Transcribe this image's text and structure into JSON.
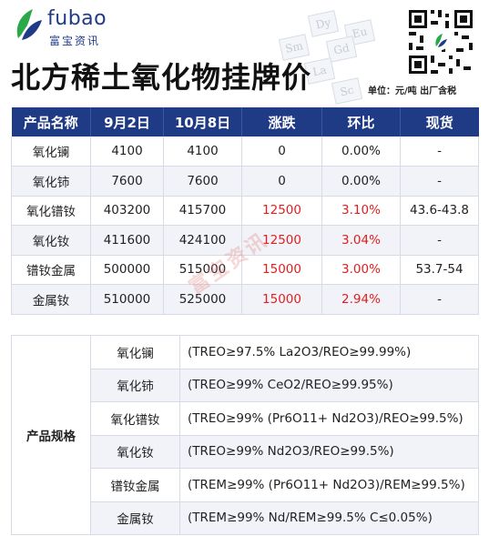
{
  "brand": {
    "name_en": "fubao",
    "name_cn": "富宝资讯",
    "primary_color": "#1f3b86",
    "accent_color": "#2aa84a"
  },
  "header": {
    "title": "北方稀土氧化物挂牌价",
    "unit_note": "单位：元/吨 出厂含税",
    "element_tiles": [
      "Dy",
      "Eu",
      "Gd",
      "Sm",
      "La",
      "Sc"
    ]
  },
  "price_table": {
    "columns": [
      "产品名称",
      "9月2日",
      "10月8日",
      "涨跌",
      "环比",
      "现货"
    ],
    "rows": [
      {
        "name": "氧化镧",
        "sep2": "4100",
        "oct8": "4100",
        "change": "0",
        "mom": "0.00%",
        "spot": "-",
        "up": false
      },
      {
        "name": "氧化铈",
        "sep2": "7600",
        "oct8": "7600",
        "change": "0",
        "mom": "0.00%",
        "spot": "-",
        "up": false
      },
      {
        "name": "氧化镨钕",
        "sep2": "403200",
        "oct8": "415700",
        "change": "12500",
        "mom": "3.10%",
        "spot": "43.6-43.8",
        "up": true
      },
      {
        "name": "氧化钕",
        "sep2": "411600",
        "oct8": "424100",
        "change": "12500",
        "mom": "3.04%",
        "spot": "-",
        "up": true
      },
      {
        "name": "镨钕金属",
        "sep2": "500000",
        "oct8": "515000",
        "change": "15000",
        "mom": "3.00%",
        "spot": "53.7-54",
        "up": true
      },
      {
        "name": "金属钕",
        "sep2": "510000",
        "oct8": "525000",
        "change": "15000",
        "mom": "2.94%",
        "spot": "-",
        "up": true
      }
    ]
  },
  "spec_table": {
    "heading": "产品规格",
    "rows": [
      {
        "name": "氧化镧",
        "spec": "(TREO≥97.5%   La2O3/REO≥99.99%)"
      },
      {
        "name": "氧化铈",
        "spec": "(TREO≥99%    CeO2/REO≥99.95%)"
      },
      {
        "name": "氧化镨钕",
        "spec": "(TREO≥99% (Pr6O11+ Nd2O3)/REO≥99.5%)"
      },
      {
        "name": "氧化钕",
        "spec": "(TREO≥99% Nd2O3/REO≥99.5%)"
      },
      {
        "name": "镨钕金属",
        "spec": "(TREM≥99% (Pr6O11+ Nd2O3)/REM≥99.5%)"
      },
      {
        "name": "金属钕",
        "spec": "(TREM≥99% Nd/REM≥99.5%   C≤0.05%)"
      }
    ]
  },
  "watermark": "富宝资讯",
  "icons": {
    "logo": "fubao-leaf-logo-icon",
    "qr": "qr-code-icon"
  }
}
